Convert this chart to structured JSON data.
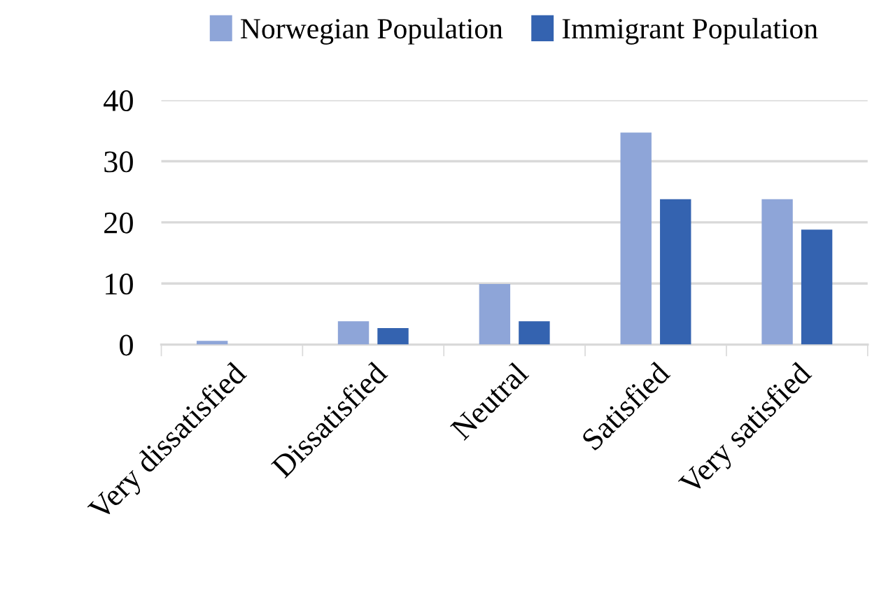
{
  "chart_data": {
    "type": "bar",
    "categories": [
      "Very dissatisfied",
      "Dissatisfied",
      "Neutral",
      "Satisfied",
      "Very satisfied"
    ],
    "series": [
      {
        "name": "Norwegian Population",
        "color": "#8ea5d8",
        "values": [
          0.6,
          3.8,
          9.9,
          34.7,
          23.8
        ]
      },
      {
        "name": "Immigrant Population",
        "color": "#3463b0",
        "values": [
          0,
          2.7,
          3.8,
          23.8,
          18.8
        ]
      }
    ],
    "ylim": [
      0,
      40
    ],
    "yticks": [
      0,
      10,
      20,
      30,
      40
    ],
    "grid": "y",
    "legend": "top"
  }
}
